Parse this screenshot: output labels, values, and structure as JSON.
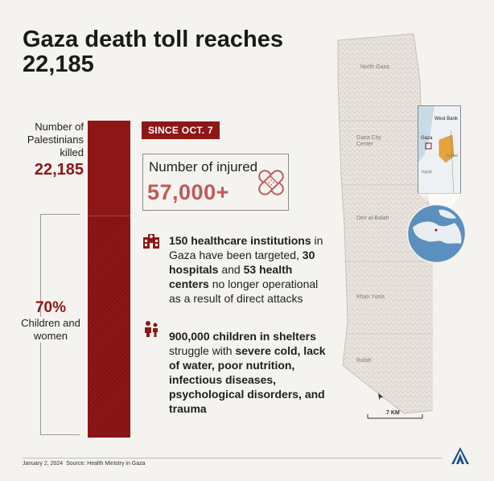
{
  "title": {
    "line1": "Gaza death toll reaches",
    "line2": "22,185"
  },
  "killed": {
    "label": "Number of Palestinians killed",
    "value": "22,185",
    "share_children_women": 0.7
  },
  "children_women": {
    "value": "70%",
    "label": "Children and women"
  },
  "since": "SINCE OCT. 7",
  "injured": {
    "label": "Number of injured",
    "value": "57,000+"
  },
  "fact1": {
    "t1": "150 healthcare institutions",
    "t2": "in Gaza have been targeted,",
    "t3": "30 hospitals",
    "t4": "and",
    "t5": "53 health centers",
    "t6": "no longer operational as a result of direct attacks"
  },
  "fact2": {
    "t1": "900,000 children in shelters",
    "t2": "struggle with",
    "t3": "severe cold, lack of water, poor nutrition, infectious diseases, psychological disorders,",
    "t4": "and trauma"
  },
  "map": {
    "regions": [
      "North Gaza",
      "Gaza City Center",
      "Deir al-Balah",
      "Khan Yunis",
      "Rafah"
    ],
    "inset_labels": [
      "West Bank",
      "Gaza",
      "Jordan",
      "Egypt"
    ],
    "scale": "7 KM",
    "north_label": "N"
  },
  "footer": {
    "date": "January 2, 2024",
    "source": "Source: Health Ministry in Gaza"
  },
  "colors": {
    "accent": "#8f1616",
    "injured": "#c05a55",
    "inset_highlight": "#e8a33c",
    "background": "#f5f3ef"
  },
  "icons": [
    "bandage-icon",
    "hospital-icon",
    "people-icon",
    "globe-icon",
    "north-arrow-icon",
    "aa-logo"
  ]
}
